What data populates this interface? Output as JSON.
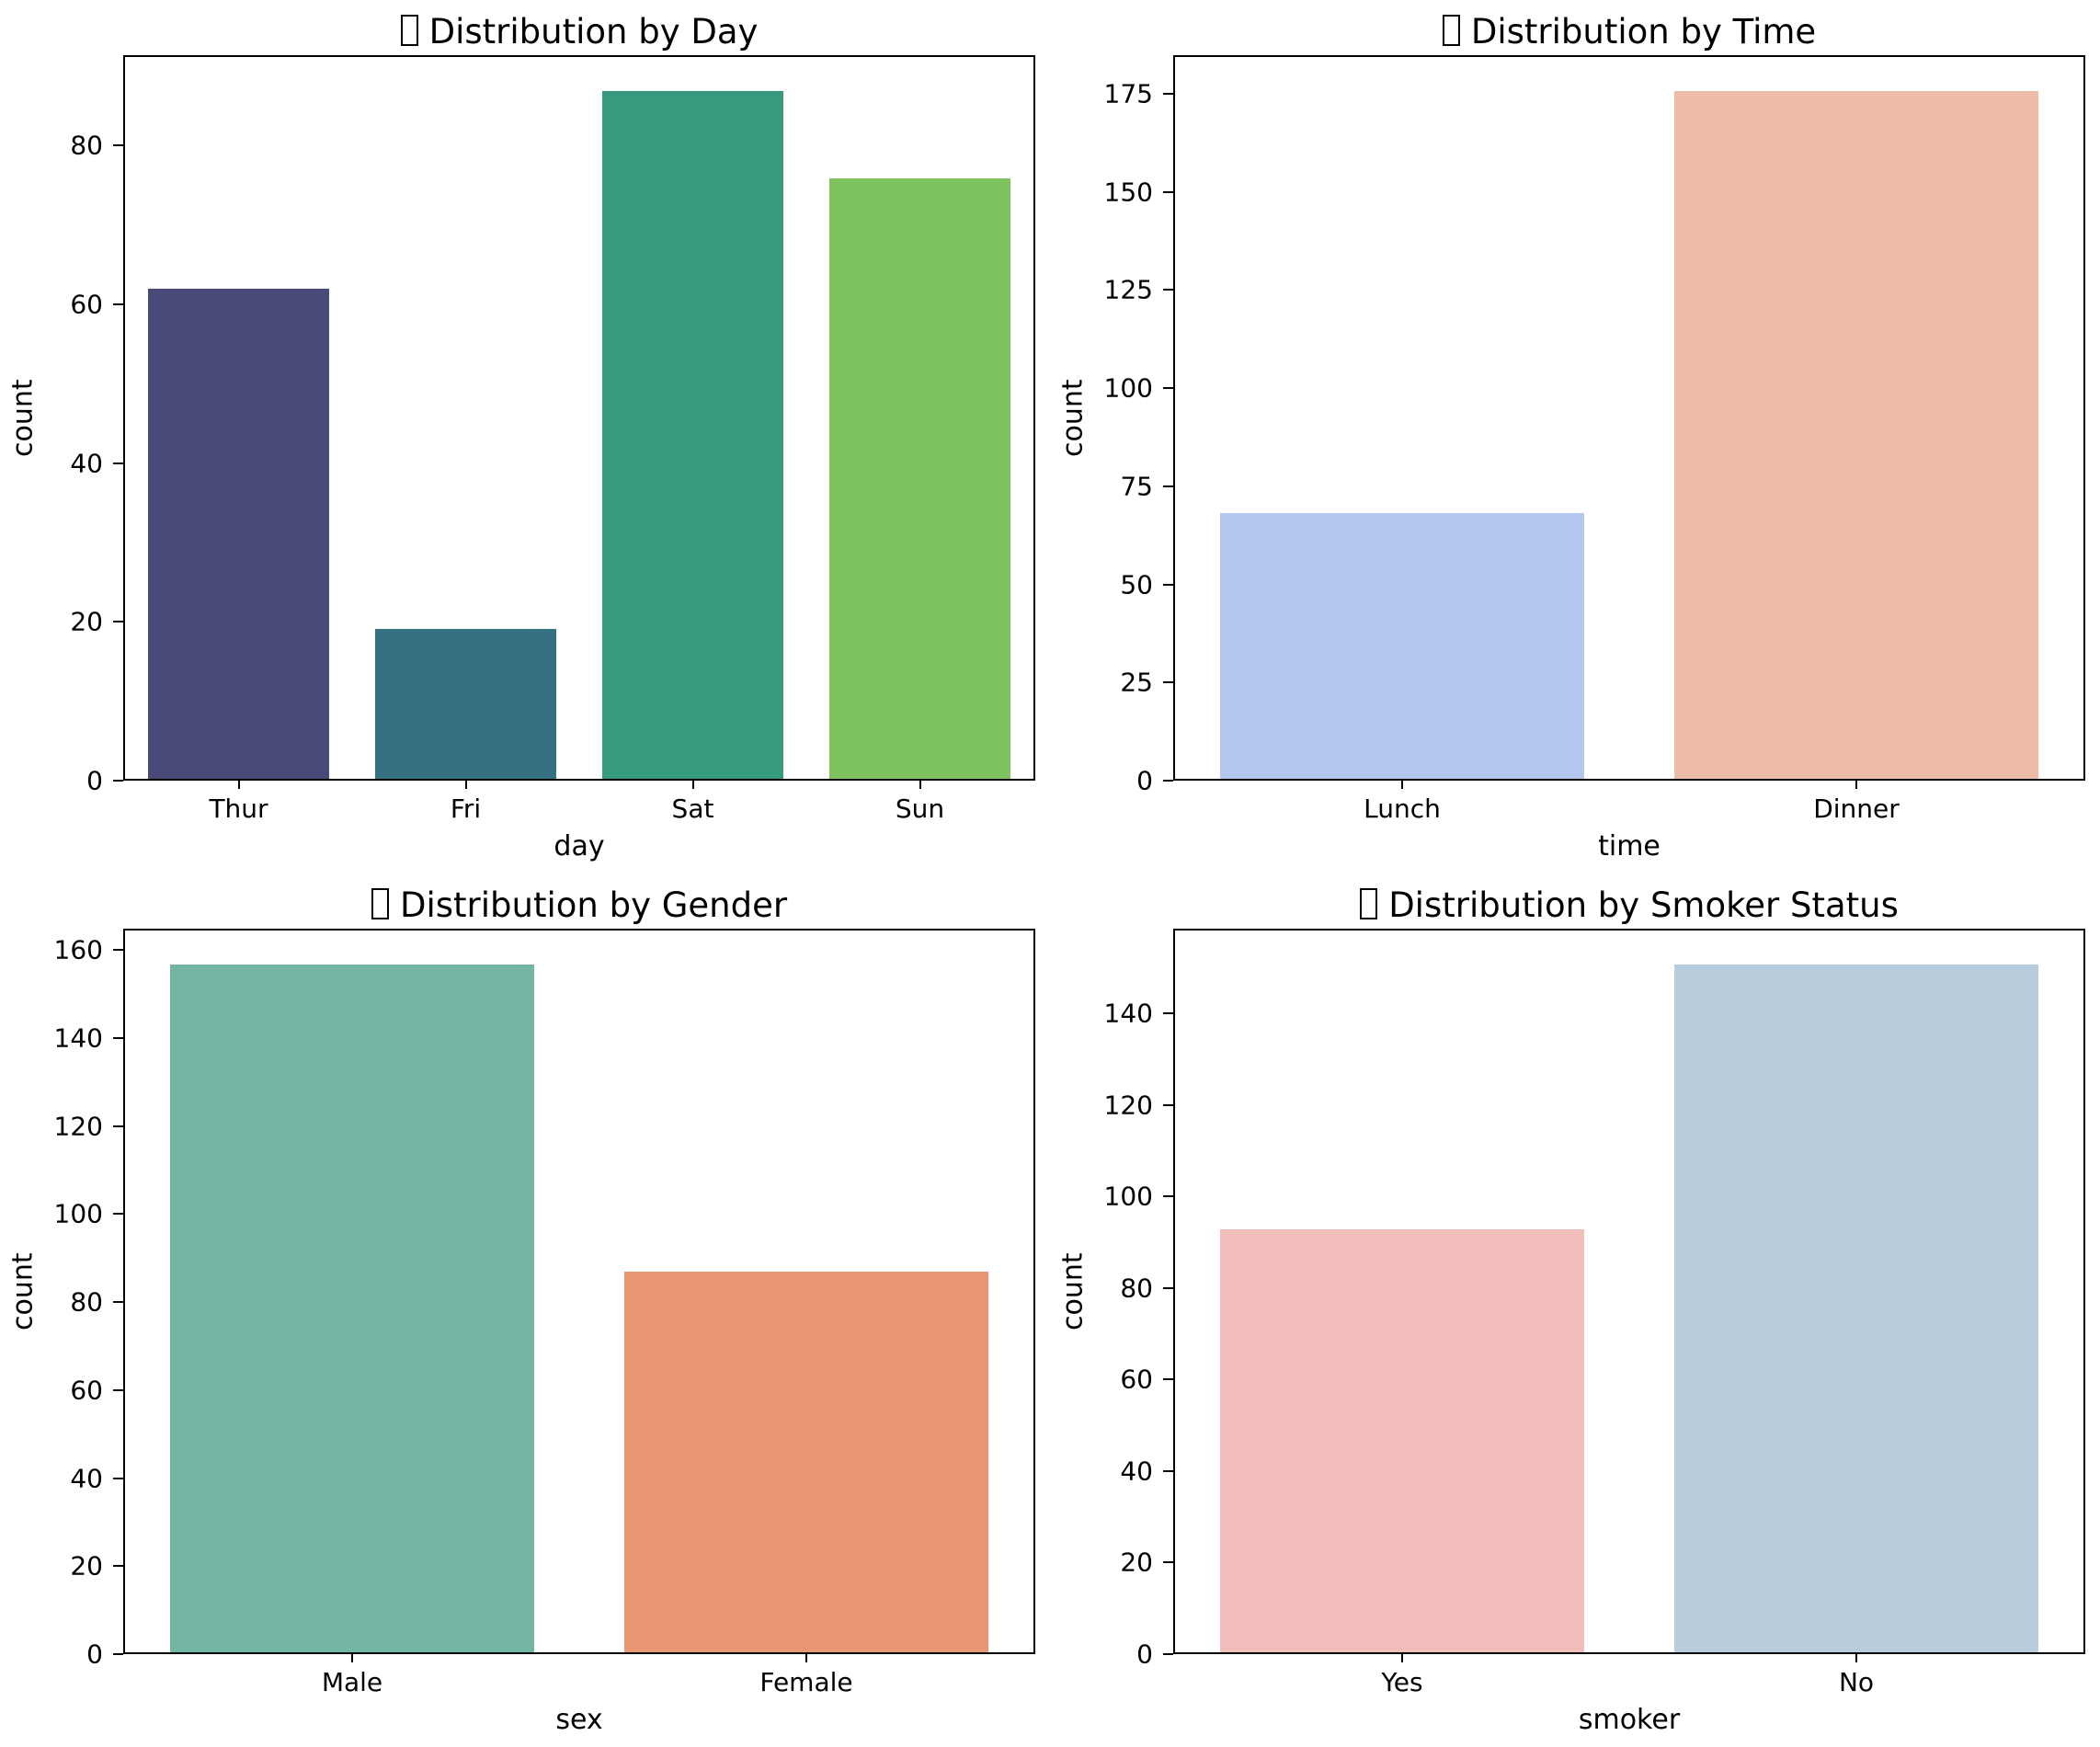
{
  "figure": {
    "background": "#ffffff",
    "layout": "2x2-grid",
    "spine_color": "#000000",
    "text_color": "#000000"
  },
  "chart_data": [
    {
      "type": "bar",
      "title": "Distribution by Day",
      "title_prefix_icon": "missing-glyph-box",
      "xlabel": "day",
      "ylabel": "count",
      "categories": [
        "Thur",
        "Fri",
        "Sat",
        "Sun"
      ],
      "values": [
        62,
        19,
        87,
        76
      ],
      "bar_colors": [
        "#4a4a78",
        "#357083",
        "#359a7e",
        "#7ec360"
      ],
      "ylim": [
        0,
        91.35
      ],
      "yticks": [
        0,
        20,
        40,
        60,
        80
      ],
      "grid": false,
      "legend": "none"
    },
    {
      "type": "bar",
      "title": "Distribution by Time",
      "title_prefix_icon": "missing-glyph-box",
      "xlabel": "time",
      "ylabel": "count",
      "categories": [
        "Lunch",
        "Dinner"
      ],
      "values": [
        68,
        176
      ],
      "bar_colors": [
        "#b3c7ef",
        "#ecbca6"
      ],
      "ylim": [
        0,
        184.8
      ],
      "yticks": [
        0,
        25,
        50,
        75,
        100,
        125,
        150,
        175
      ],
      "grid": false,
      "legend": "none"
    },
    {
      "type": "bar",
      "title": "Distribution by Gender",
      "title_prefix_icon": "missing-glyph-box",
      "xlabel": "sex",
      "ylabel": "count",
      "categories": [
        "Male",
        "Female"
      ],
      "values": [
        157,
        87
      ],
      "bar_colors": [
        "#71b5a2",
        "#e89573"
      ],
      "ylim": [
        0,
        164.85
      ],
      "yticks": [
        0,
        20,
        40,
        60,
        80,
        100,
        120,
        140,
        160
      ],
      "grid": false,
      "legend": "none"
    },
    {
      "type": "bar",
      "title": "Distribution by Smoker Status",
      "title_prefix_icon": "missing-glyph-box",
      "xlabel": "smoker",
      "ylabel": "count",
      "categories": [
        "Yes",
        "No"
      ],
      "values": [
        93,
        151
      ],
      "bar_colors": [
        "#f0bdba",
        "#b7cddd"
      ],
      "ylim": [
        0,
        158.55
      ],
      "yticks": [
        0,
        20,
        40,
        60,
        80,
        100,
        120,
        140
      ],
      "grid": false,
      "legend": "none"
    }
  ]
}
